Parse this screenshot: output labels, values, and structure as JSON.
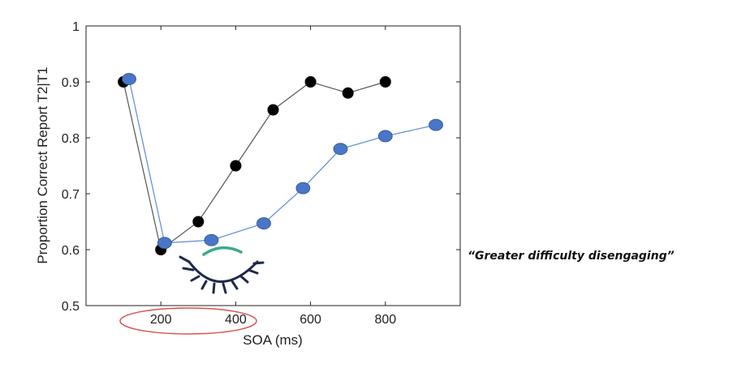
{
  "chart_data": {
    "type": "line",
    "xlabel": "SOA (ms)",
    "ylabel": "Proportion Correct Report T2|T1",
    "xlim": [
      0,
      1000
    ],
    "ylim": [
      0.5,
      1.0
    ],
    "x_ticks": [
      200,
      400,
      600,
      800
    ],
    "x_tick_labels": [
      "200",
      "400",
      "600",
      "800"
    ],
    "y_ticks": [
      0.5,
      0.6,
      0.7,
      0.8,
      0.9,
      1.0
    ],
    "y_tick_labels": [
      "0.5",
      "0.6",
      "0.7",
      "0.8",
      "0.9",
      "1"
    ],
    "grid": false,
    "series": [
      {
        "color": "#000000",
        "line_color": "#555555",
        "marker": "circle",
        "x": [
          100,
          200,
          300,
          400,
          500,
          600,
          700,
          800
        ],
        "y": [
          0.9,
          0.6,
          0.65,
          0.75,
          0.85,
          0.9,
          0.88,
          0.9
        ]
      },
      {
        "color": "#4a76c8",
        "line_color": "#5b8ad8",
        "marker": "ellipse",
        "x": [
          115,
          210,
          335,
          475,
          580,
          680,
          800,
          935
        ],
        "y": [
          0.905,
          0.612,
          0.617,
          0.647,
          0.71,
          0.78,
          0.803,
          0.823
        ]
      }
    ]
  },
  "annotation": {
    "text": "“Greater difficulty disengaging”"
  },
  "colors": {
    "highlight_ellipse": "#d9534f",
    "arc": "#3aaa8c",
    "eye_icon": "#1e2a4a"
  },
  "icons": [
    "eye-icon"
  ]
}
